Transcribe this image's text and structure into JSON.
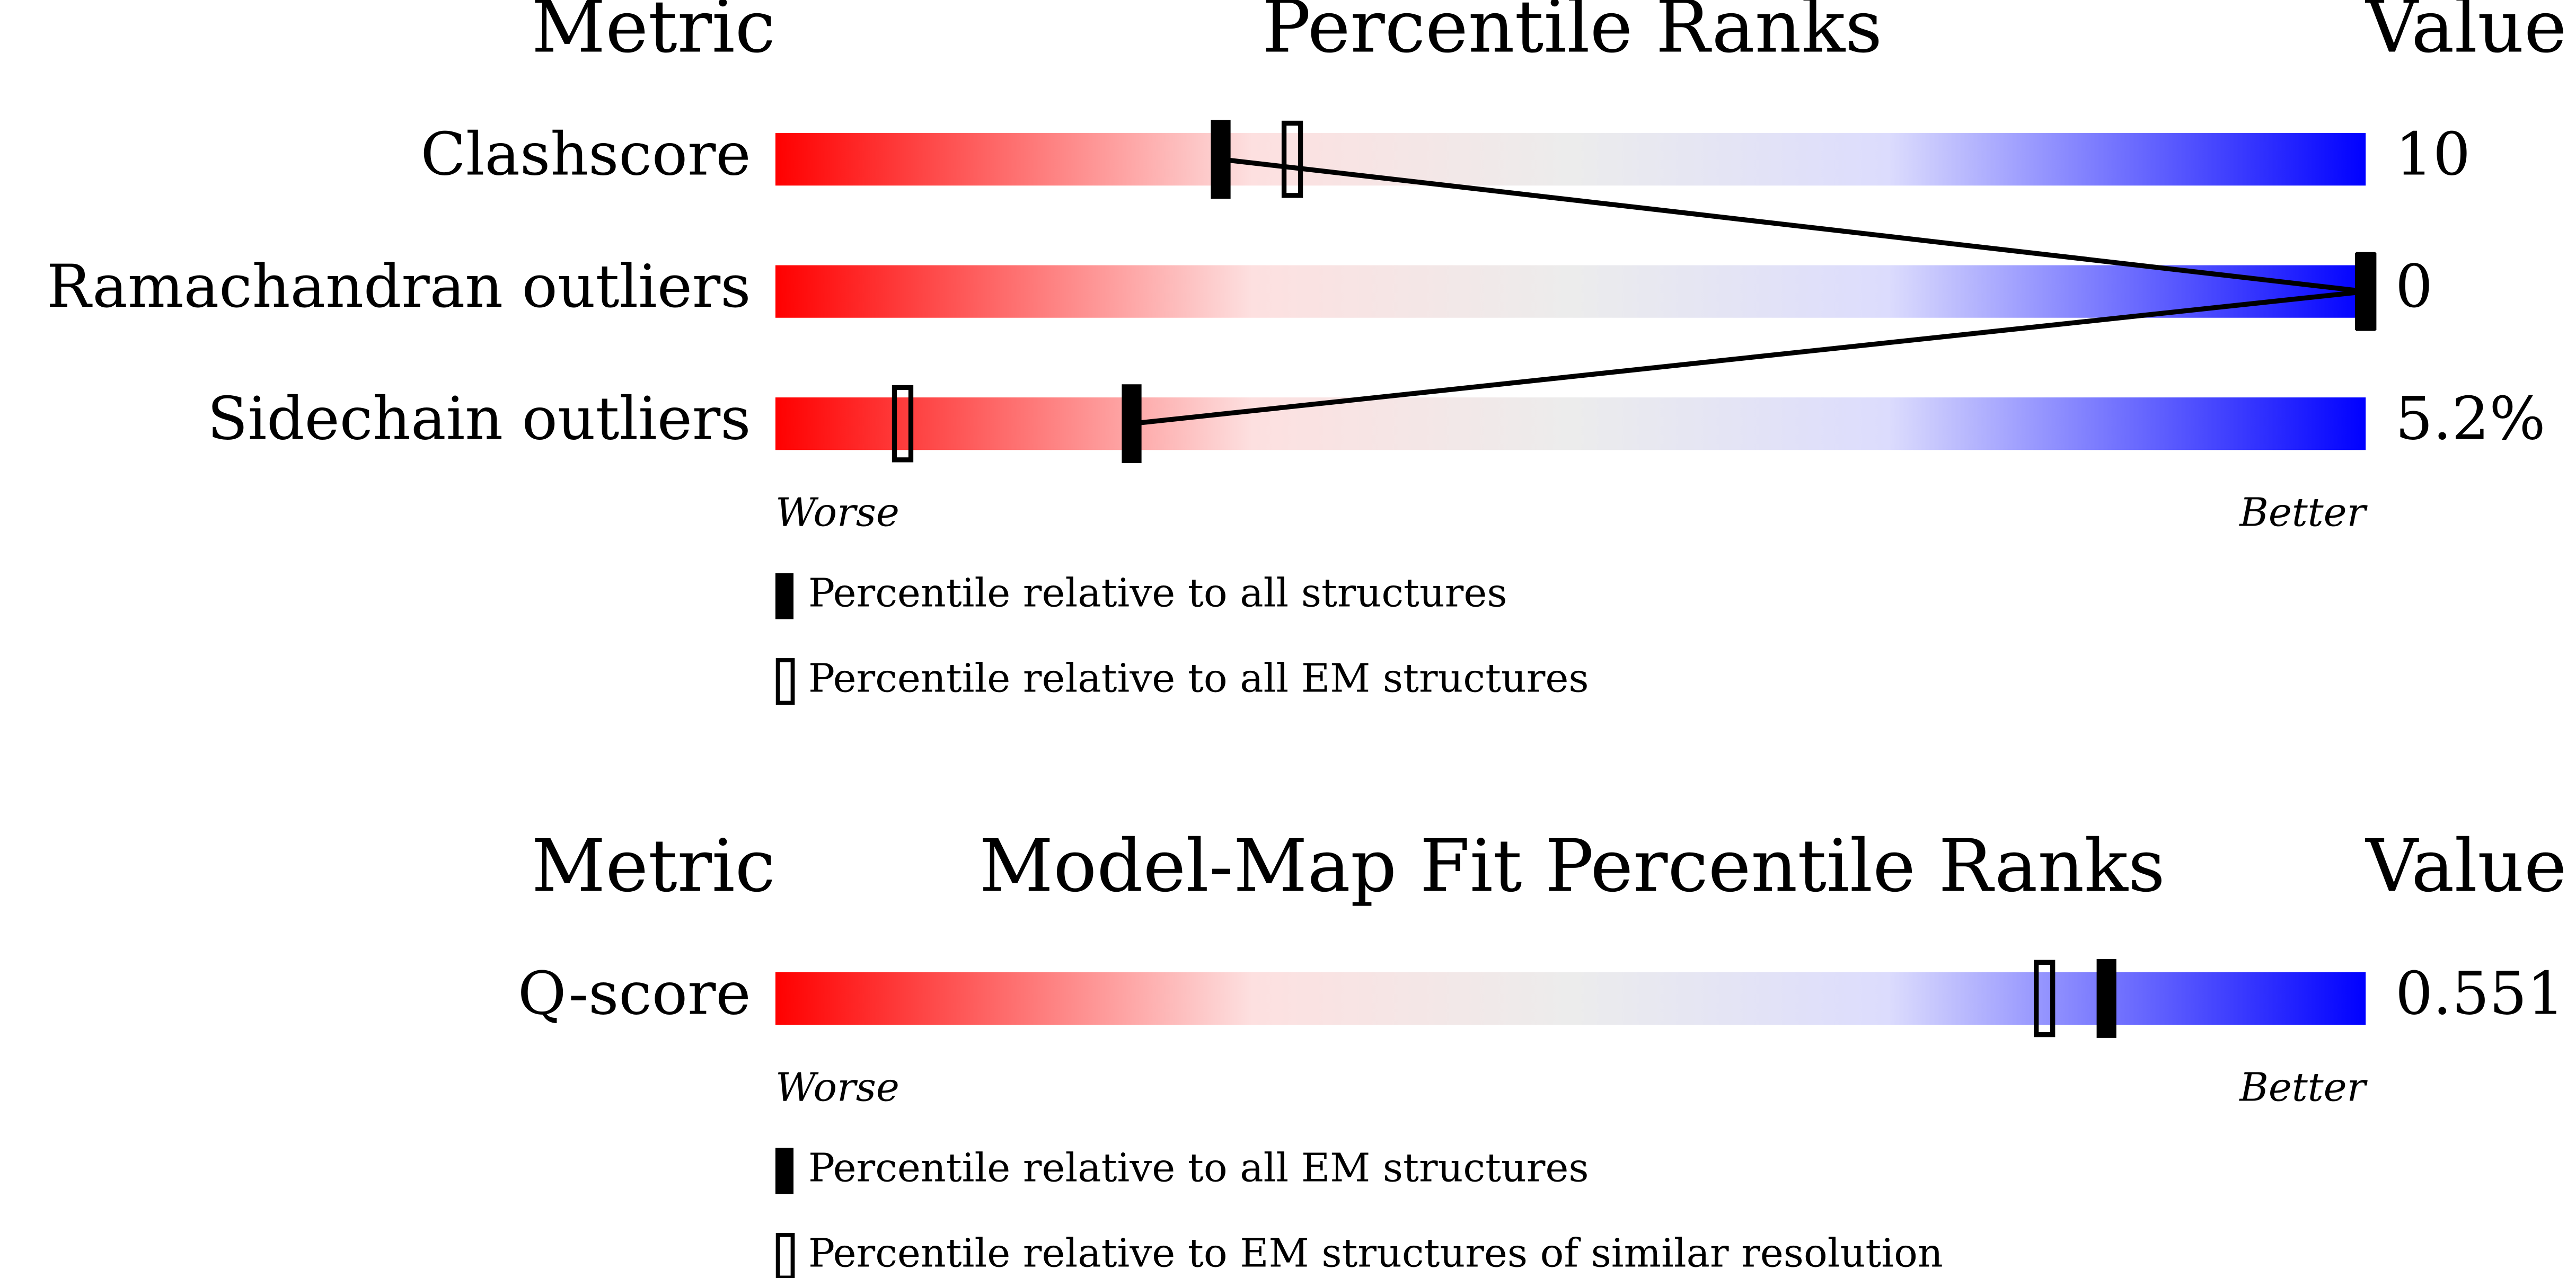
{
  "chart_data": [
    {
      "type": "percentile-slider",
      "metric_header": "Metric",
      "title": "Percentile Ranks",
      "value_header": "Value",
      "categories": [
        "Clashscore",
        "Ramachandran outliers",
        "Sidechain outliers"
      ],
      "metric_values": [
        "10",
        "0",
        "5.2%"
      ],
      "xlim": [
        0,
        100
      ],
      "x_low_label": "Worse",
      "x_high_label": "Better",
      "series": [
        {
          "name": "Percentile relative to all structures",
          "style": "filled",
          "color": "#000000",
          "values": [
            28,
            100,
            22.4
          ]
        },
        {
          "name": "Percentile relative to all EM structures",
          "style": "outline",
          "color": "#000000",
          "values": [
            32.5,
            100,
            8
          ]
        }
      ]
    },
    {
      "type": "percentile-slider",
      "metric_header": "Metric",
      "title": "Model-Map Fit Percentile Ranks",
      "value_header": "Value",
      "categories": [
        "Q-score"
      ],
      "metric_values": [
        "0.551"
      ],
      "xlim": [
        0,
        100
      ],
      "x_low_label": "Worse",
      "x_high_label": "Better",
      "series": [
        {
          "name": "Percentile relative to all EM structures",
          "style": "filled",
          "color": "#000000",
          "values": [
            83.7
          ]
        },
        {
          "name": "Percentile relative to EM structures of similar resolution",
          "style": "outline",
          "color": "#000000",
          "values": [
            79.8
          ]
        }
      ]
    }
  ]
}
